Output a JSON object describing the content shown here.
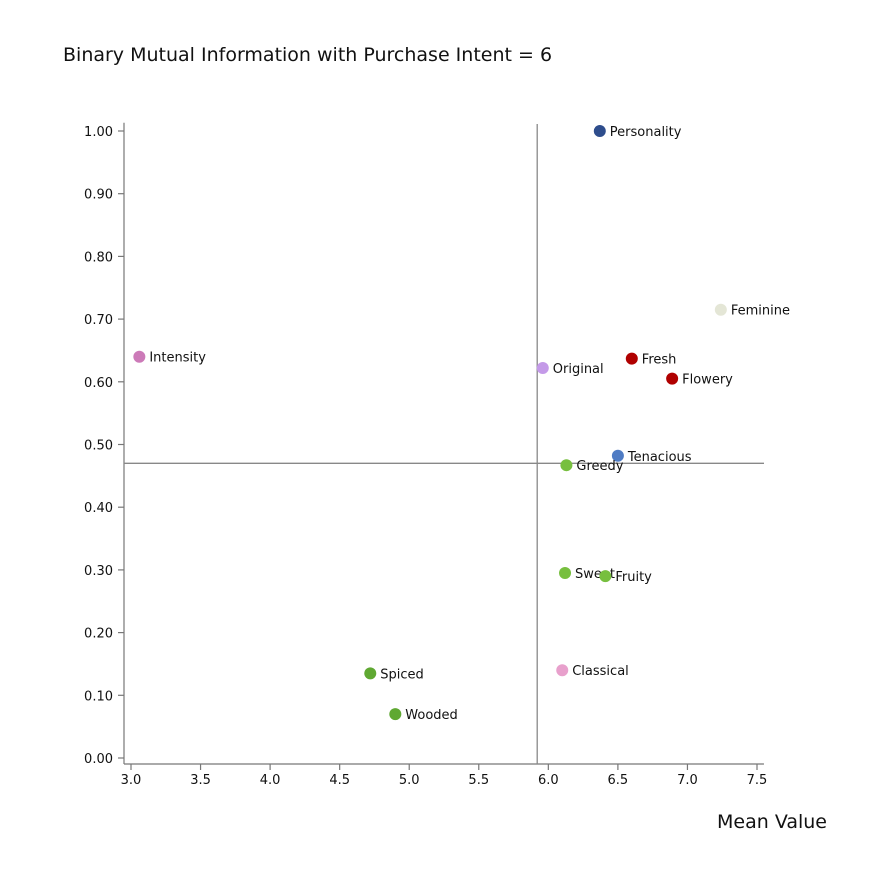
{
  "chart_data": {
    "type": "scatter",
    "title": "Binary Mutual Information with Purchase Intent = 6",
    "xlabel": "Mean Value",
    "ylabel": "",
    "xlim": [
      3.0,
      7.55
    ],
    "ylim": [
      0.0,
      1.01
    ],
    "xticks": [
      "3.0",
      "3.5",
      "4.0",
      "4.5",
      "5.0",
      "5.5",
      "6.0",
      "6.5",
      "7.0",
      "7.5"
    ],
    "yticks": [
      "0.00",
      "0.10",
      "0.20",
      "0.30",
      "0.40",
      "0.50",
      "0.60",
      "0.70",
      "0.80",
      "0.90",
      "1.00"
    ],
    "ref_lines": {
      "x": 5.92,
      "y": 0.47
    },
    "points": [
      {
        "label": "Personality",
        "x": 6.37,
        "y": 1.0,
        "color": "#2e4d8c"
      },
      {
        "label": "Feminine",
        "x": 7.24,
        "y": 0.715,
        "color": "#e4e6d6"
      },
      {
        "label": "Intensity",
        "x": 3.06,
        "y": 0.64,
        "color": "#cc7ab8"
      },
      {
        "label": "Fresh",
        "x": 6.6,
        "y": 0.637,
        "color": "#b00000"
      },
      {
        "label": "Original",
        "x": 5.96,
        "y": 0.622,
        "color": "#c49ae8"
      },
      {
        "label": "Flowery",
        "x": 6.89,
        "y": 0.605,
        "color": "#b00000"
      },
      {
        "label": "Tenacious",
        "x": 6.5,
        "y": 0.482,
        "color": "#4f7cc4"
      },
      {
        "label": "Greedy",
        "x": 6.13,
        "y": 0.467,
        "color": "#77bf3f"
      },
      {
        "label": "Sweet",
        "x": 6.12,
        "y": 0.295,
        "color": "#77bf3f"
      },
      {
        "label": "Fruity",
        "x": 6.41,
        "y": 0.29,
        "color": "#77bf3f"
      },
      {
        "label": "Classical",
        "x": 6.1,
        "y": 0.14,
        "color": "#e8a0cc"
      },
      {
        "label": "Spiced",
        "x": 4.72,
        "y": 0.135,
        "color": "#5fa832"
      },
      {
        "label": "Wooded",
        "x": 4.9,
        "y": 0.07,
        "color": "#5fa832"
      }
    ]
  }
}
